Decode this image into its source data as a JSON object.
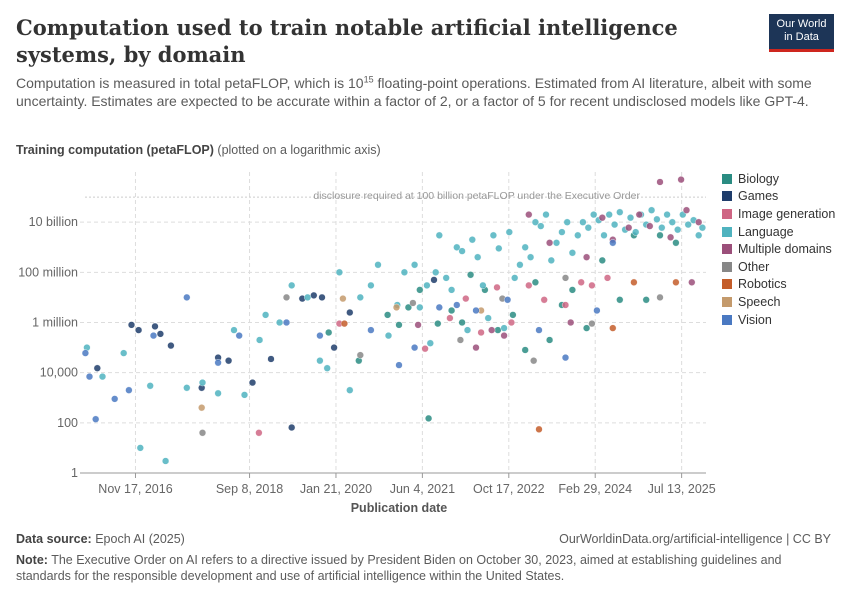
{
  "header": {
    "title": "Computation used to train notable artificial intelligence systems, by domain",
    "subtitle_part1": "Computation is measured in total petaFLOP, which is 10",
    "subtitle_sup": "15",
    "subtitle_part2": " floating-point operations. Estimated from AI literature, albeit with some uncertainty. Estimates are expected to be accurate within a factor of 2, or a factor of 5 for recent undisclosed models like GPT-4.",
    "logo_line1": "Our World",
    "logo_line2": "in Data"
  },
  "footer": {
    "source_label": "Data source:",
    "source_value": " Epoch AI (2025)",
    "url": "OurWorldinData.org/artificial-intelligence | CC BY",
    "note_label": "Note:",
    "note_value": " The Executive Order on AI refers to a directive issued by President Biden on October 30, 2023, aimed at establishing guidelines and standards for the responsible development and use of artificial intelligence within the United States."
  },
  "colors": {
    "Biology": "#2a8c82",
    "Games": "#1f3d6b",
    "Image generation": "#cf6684",
    "Language": "#4fb3bf",
    "Multiple domains": "#9b4f7a",
    "Other": "#878787",
    "Robotics": "#c45d2a",
    "Speech": "#c49a6c",
    "Vision": "#4a79c2"
  },
  "chart_data": {
    "type": "scatter",
    "title": "Computation used to train notable artificial intelligence systems, by domain",
    "xlabel": "Publication date",
    "ylabel": "Training computation (petaFLOP)",
    "ylabel_note": "(plotted on a logarithmic axis)",
    "y_scale": "log",
    "y_ticks": [
      1,
      100,
      10000,
      1000000,
      100000000,
      10000000000
    ],
    "y_tick_labels": [
      "1",
      "100",
      "10,000",
      "1 million",
      "100 million",
      "10 billion"
    ],
    "x_ticks": [
      "2016-11-17",
      "2018-09-08",
      "2020-01-21",
      "2021-06-04",
      "2022-10-17",
      "2024-02-29",
      "2025-07-13"
    ],
    "x_tick_labels": [
      "Nov 17, 2016",
      "Sep 8, 2018",
      "Jan 21, 2020",
      "Jun 4, 2021",
      "Oct 17, 2022",
      "Feb 29, 2024",
      "Jul 13, 2025"
    ],
    "xlim": [
      "2016-01-01",
      "2025-12-01"
    ],
    "ylim": [
      1,
      1000000000000
    ],
    "reference_line": {
      "y": 100000000000,
      "label": "disclosure required at 100 billion petaFLOP under the Executive Order"
    },
    "legend_position": "right",
    "grid": true,
    "series": [
      {
        "name": "Biology",
        "points": [
          [
            "2019-12-10",
            400000.0
          ],
          [
            "2020-06-01",
            30000.0
          ],
          [
            "2020-11-15",
            2000000.0
          ],
          [
            "2021-01-20",
            800000.0
          ],
          [
            "2021-03-15",
            4000000.0
          ],
          [
            "2021-05-20",
            20000000.0
          ],
          [
            "2021-07-10",
            150
          ],
          [
            "2021-09-01",
            900000.0
          ],
          [
            "2021-11-20",
            3000000.0
          ],
          [
            "2022-01-20",
            1000000.0
          ],
          [
            "2022-03-10",
            80000000.0
          ],
          [
            "2022-06-01",
            20000000.0
          ],
          [
            "2022-08-15",
            500000.0
          ],
          [
            "2022-11-10",
            2000000.0
          ],
          [
            "2023-01-20",
            80000.0
          ],
          [
            "2023-03-20",
            40000000.0
          ],
          [
            "2023-06-10",
            200000.0
          ],
          [
            "2023-08-20",
            5000000.0
          ],
          [
            "2023-10-20",
            20000000.0
          ],
          [
            "2024-01-10",
            600000.0
          ],
          [
            "2024-04-10",
            300000000.0
          ],
          [
            "2024-07-20",
            8000000.0
          ],
          [
            "2024-10-10",
            3000000000.0
          ],
          [
            "2024-12-20",
            8000000.0
          ],
          [
            "2025-03-10",
            3000000000.0
          ],
          [
            "2025-06-10",
            1500000000.0
          ]
        ]
      },
      {
        "name": "Games",
        "points": [
          [
            "2016-04-10",
            15000.0
          ],
          [
            "2016-10-25",
            800000.0
          ],
          [
            "2016-12-05",
            500000.0
          ],
          [
            "2017-03-10",
            700000.0
          ],
          [
            "2017-04-10",
            350000.0
          ],
          [
            "2017-06-10",
            120000.0
          ],
          [
            "2017-12-05",
            2500.0
          ],
          [
            "2018-03-10",
            40000.0
          ],
          [
            "2018-05-10",
            30000.0
          ],
          [
            "2018-09-25",
            4000.0
          ],
          [
            "2019-01-10",
            35000.0
          ],
          [
            "2019-05-10",
            65
          ],
          [
            "2019-07-10",
            9000000.0
          ],
          [
            "2019-09-15",
            12000000.0
          ],
          [
            "2019-11-01",
            10000000.0
          ],
          [
            "2020-01-10",
            100000.0
          ],
          [
            "2020-04-10",
            2500000.0
          ],
          [
            "2021-08-10",
            50000000.0
          ]
        ]
      },
      {
        "name": "Image generation",
        "points": [
          [
            "2018-11-01",
            40
          ],
          [
            "2020-02-10",
            900000.0
          ],
          [
            "2021-06-20",
            90000.0
          ],
          [
            "2021-11-10",
            1500000.0
          ],
          [
            "2022-02-10",
            9000000.0
          ],
          [
            "2022-05-10",
            400000.0
          ],
          [
            "2022-08-10",
            25000000.0
          ],
          [
            "2022-11-01",
            1000000.0
          ],
          [
            "2023-02-10",
            30000000.0
          ],
          [
            "2023-05-10",
            8000000.0
          ],
          [
            "2023-09-10",
            5000000.0
          ],
          [
            "2023-12-10",
            40000000.0
          ],
          [
            "2024-02-10",
            30000000.0
          ],
          [
            "2024-05-10",
            60000000.0
          ]
        ]
      },
      {
        "name": "Language",
        "points": [
          [
            "2016-02-10",
            100000.0
          ],
          [
            "2016-05-10",
            7000.0
          ],
          [
            "2016-09-10",
            60000.0
          ],
          [
            "2016-12-15",
            10
          ],
          [
            "2017-02-10",
            3000.0
          ],
          [
            "2017-05-10",
            3
          ],
          [
            "2017-09-10",
            2500.0
          ],
          [
            "2017-12-10",
            4000.0
          ],
          [
            "2018-03-10",
            1500.0
          ],
          [
            "2018-06-10",
            500000.0
          ],
          [
            "2018-08-10",
            1300.0
          ],
          [
            "2018-11-05",
            200000.0
          ],
          [
            "2018-12-10",
            2000000.0
          ],
          [
            "2019-03-01",
            1000000.0
          ],
          [
            "2019-05-10",
            30000000.0
          ],
          [
            "2019-08-10",
            10000000.0
          ],
          [
            "2019-10-20",
            30000.0
          ],
          [
            "2019-12-01",
            15000.0
          ],
          [
            "2020-02-10",
            100000000.0
          ],
          [
            "2020-04-10",
            2000.0
          ],
          [
            "2020-06-10",
            10000000.0
          ],
          [
            "2020-08-10",
            30000000.0
          ],
          [
            "2020-09-20",
            200000000.0
          ],
          [
            "2020-11-20",
            300000.0
          ],
          [
            "2021-01-10",
            5000000.0
          ],
          [
            "2021-02-20",
            100000000.0
          ],
          [
            "2021-04-20",
            200000000.0
          ],
          [
            "2021-05-20",
            4000000.0
          ],
          [
            "2021-06-30",
            30000000.0
          ],
          [
            "2021-07-20",
            150000.0
          ],
          [
            "2021-08-20",
            100000000.0
          ],
          [
            "2021-09-10",
            3000000000.0
          ],
          [
            "2021-10-20",
            60000000.0
          ],
          [
            "2021-11-20",
            20000000.0
          ],
          [
            "2021-12-20",
            1000000000.0
          ],
          [
            "2022-01-20",
            700000000.0
          ],
          [
            "2022-02-20",
            500000.0
          ],
          [
            "2022-03-20",
            2000000000.0
          ],
          [
            "2022-04-20",
            400000000.0
          ],
          [
            "2022-05-20",
            30000000.0
          ],
          [
            "2022-06-20",
            1500000.0
          ],
          [
            "2022-07-20",
            3000000000.0
          ],
          [
            "2022-08-20",
            900000000.0
          ],
          [
            "2022-09-20",
            600000.0
          ],
          [
            "2022-10-20",
            4000000000.0
          ],
          [
            "2022-11-20",
            60000000.0
          ],
          [
            "2022-12-20",
            200000000.0
          ],
          [
            "2023-01-20",
            1000000000.0
          ],
          [
            "2023-02-20",
            400000000.0
          ],
          [
            "2023-03-20",
            10000000000.0
          ],
          [
            "2023-04-20",
            7000000000.0
          ],
          [
            "2023-05-20",
            20000000000.0
          ],
          [
            "2023-06-20",
            300000000.0
          ],
          [
            "2023-07-20",
            1500000000.0
          ],
          [
            "2023-08-20",
            4000000000.0
          ],
          [
            "2023-09-20",
            10000000000.0
          ],
          [
            "2023-10-20",
            600000000.0
          ],
          [
            "2023-11-20",
            3000000000.0
          ],
          [
            "2023-12-20",
            10000000000.0
          ],
          [
            "2024-01-20",
            6000000000.0
          ],
          [
            "2024-02-20",
            20000000000.0
          ],
          [
            "2024-03-20",
            12000000000.0
          ],
          [
            "2024-04-20",
            3000000000.0
          ],
          [
            "2024-05-20",
            20000000000.0
          ],
          [
            "2024-06-20",
            8000000000.0
          ],
          [
            "2024-07-20",
            25000000000.0
          ],
          [
            "2024-08-20",
            5000000000.0
          ],
          [
            "2024-09-20",
            15000000000.0
          ],
          [
            "2024-10-20",
            4000000000.0
          ],
          [
            "2024-11-20",
            20000000000.0
          ],
          [
            "2024-12-20",
            8000000000.0
          ],
          [
            "2025-01-20",
            30000000000.0
          ],
          [
            "2025-02-20",
            13000000000.0
          ],
          [
            "2025-03-20",
            6000000000.0
          ],
          [
            "2025-04-20",
            20000000000.0
          ],
          [
            "2025-05-20",
            10000000000.0
          ],
          [
            "2025-06-20",
            5000000000.0
          ],
          [
            "2025-07-20",
            20000000000.0
          ],
          [
            "2025-08-20",
            8000000000.0
          ],
          [
            "2025-09-20",
            12000000000.0
          ],
          [
            "2025-10-20",
            3000000000.0
          ],
          [
            "2025-11-10",
            6000000000.0
          ]
        ]
      },
      {
        "name": "Multiple domains",
        "points": [
          [
            "2021-05-10",
            800000.0
          ],
          [
            "2022-04-10",
            100000.0
          ],
          [
            "2022-07-10",
            500000.0
          ],
          [
            "2022-09-20",
            300000.0
          ],
          [
            "2023-02-10",
            20000000000.0
          ],
          [
            "2023-06-10",
            1500000000.0
          ],
          [
            "2023-10-10",
            1000000.0
          ],
          [
            "2024-01-10",
            400000000.0
          ],
          [
            "2024-04-10",
            15000000000.0
          ],
          [
            "2024-06-10",
            2000000000.0
          ],
          [
            "2024-09-10",
            6000000000.0
          ],
          [
            "2024-11-10",
            20000000000.0
          ],
          [
            "2025-01-10",
            7000000000.0
          ],
          [
            "2025-03-10",
            400000000000.0
          ],
          [
            "2025-05-10",
            2500000000.0
          ],
          [
            "2025-07-10",
            500000000000.0
          ],
          [
            "2025-08-10",
            30000000000.0
          ],
          [
            "2025-09-10",
            40000000.0
          ],
          [
            "2025-10-20",
            10000000000.0
          ]
        ]
      },
      {
        "name": "Other",
        "points": [
          [
            "2017-12-10",
            40
          ],
          [
            "2019-04-10",
            10000000.0
          ],
          [
            "2020-06-10",
            50000.0
          ],
          [
            "2021-04-10",
            6000000.0
          ],
          [
            "2022-01-10",
            200000.0
          ],
          [
            "2022-09-10",
            9000000.0
          ],
          [
            "2023-03-10",
            30000.0
          ],
          [
            "2023-09-10",
            60000000.0
          ],
          [
            "2024-02-10",
            900000.0
          ],
          [
            "2025-03-10",
            10000000.0
          ]
        ]
      },
      {
        "name": "Robotics",
        "points": [
          [
            "2020-03-10",
            900000.0
          ],
          [
            "2023-04-10",
            55
          ],
          [
            "2024-06-10",
            600000.0
          ],
          [
            "2024-10-10",
            40000000.0
          ],
          [
            "2025-06-10",
            40000000.0
          ]
        ]
      },
      {
        "name": "Speech",
        "points": [
          [
            "2017-12-05",
            400
          ],
          [
            "2020-03-01",
            9000000.0
          ],
          [
            "2021-01-05",
            4000000.0
          ],
          [
            "2022-05-10",
            3000000.0
          ]
        ]
      },
      {
        "name": "Vision",
        "points": [
          [
            "2016-02-01",
            60000.0
          ],
          [
            "2016-02-25",
            7000.0
          ],
          [
            "2016-04-01",
            140
          ],
          [
            "2016-07-20",
            900
          ],
          [
            "2016-10-10",
            2000.0
          ],
          [
            "2017-03-01",
            300000.0
          ],
          [
            "2017-09-10",
            10000000.0
          ],
          [
            "2018-03-10",
            25000.0
          ],
          [
            "2018-07-10",
            300000.0
          ],
          [
            "2019-04-10",
            1000000.0
          ],
          [
            "2019-10-20",
            300000.0
          ],
          [
            "2020-08-10",
            500000.0
          ],
          [
            "2021-01-20",
            20000.0
          ],
          [
            "2021-04-20",
            100000.0
          ],
          [
            "2021-09-10",
            4000000.0
          ],
          [
            "2021-12-20",
            5000000.0
          ],
          [
            "2022-04-10",
            3000000.0
          ],
          [
            "2022-10-10",
            8000000.0
          ],
          [
            "2023-04-10",
            500000.0
          ],
          [
            "2023-09-10",
            40000.0
          ],
          [
            "2024-03-10",
            3000000.0
          ],
          [
            "2024-06-10",
            1500000000.0
          ]
        ]
      }
    ]
  }
}
